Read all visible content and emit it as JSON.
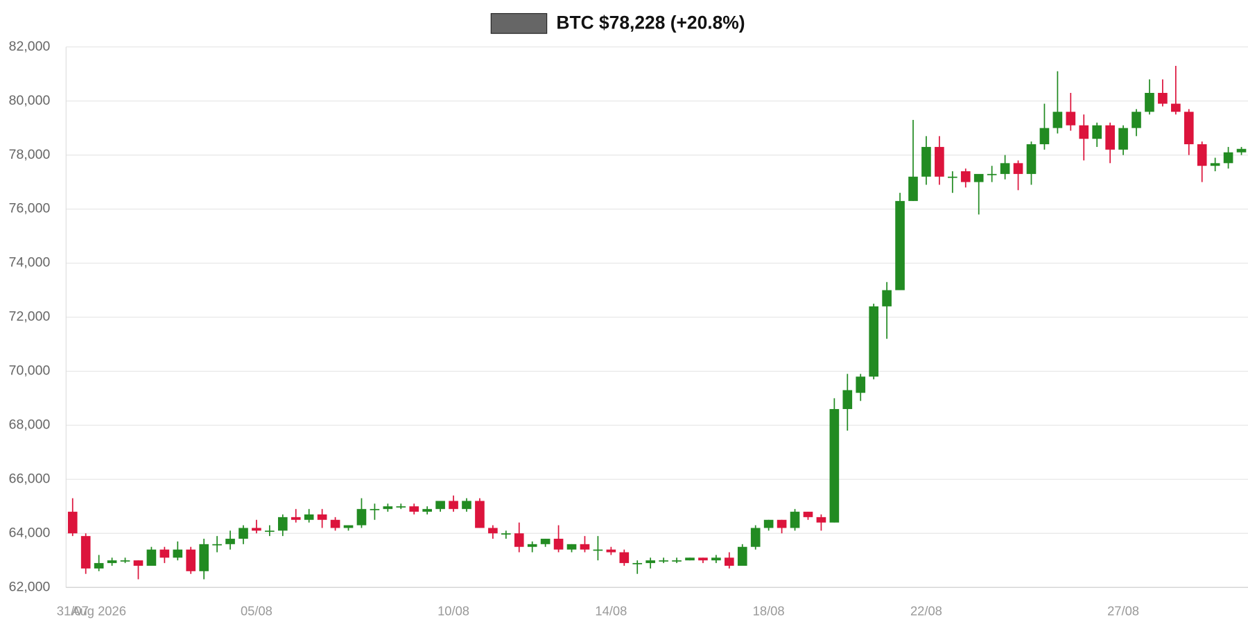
{
  "chart_data": {
    "type": "candlestick",
    "series": [
      {
        "name": "BTC $78,228 (+20.8%)",
        "color": "#666666",
        "up_color": "#228b22",
        "down_color": "#dc143c",
        "open": [
          64800,
          63900,
          62700,
          62900,
          63000,
          63000,
          62800,
          63400,
          63100,
          63400,
          62600,
          63600,
          63600,
          63800,
          64200,
          64100,
          64100,
          64600,
          64500,
          64700,
          64500,
          64200,
          64300,
          64900,
          64900,
          65000,
          65000,
          64800,
          64900,
          65200,
          64900,
          65200,
          64200,
          64000,
          64000,
          63500,
          63600,
          63800,
          63400,
          63600,
          63400,
          63400,
          63300,
          62900,
          62900,
          63000,
          63000,
          63000,
          63100,
          63000,
          63100,
          62800,
          63500,
          64200,
          64500,
          64200,
          64800,
          64600,
          64400,
          68600,
          69200,
          69800,
          72400,
          73000,
          76300,
          77200,
          78300,
          77200,
          77400,
          77000,
          77300,
          77300,
          77700,
          77300,
          78400,
          79000,
          79600,
          79100,
          78600,
          79100,
          78200,
          79000,
          79600,
          80300,
          79900,
          79600,
          78400,
          77600,
          77700,
          78100
        ],
        "high": [
          65300,
          64000,
          63200,
          63100,
          63100,
          63000,
          63500,
          63500,
          63700,
          63500,
          63800,
          63900,
          64100,
          64300,
          64500,
          64300,
          64700,
          64900,
          64900,
          64900,
          64600,
          64300,
          65300,
          65100,
          65100,
          65100,
          65100,
          65000,
          65200,
          65400,
          65300,
          65300,
          64300,
          64100,
          64400,
          63700,
          63800,
          64300,
          63600,
          63900,
          63900,
          63500,
          63400,
          63000,
          63100,
          63100,
          63100,
          63100,
          63100,
          63200,
          63300,
          63600,
          64300,
          64500,
          64500,
          64900,
          64800,
          64700,
          69000,
          69900,
          69900,
          72500,
          73300,
          76600,
          79300,
          78700,
          78700,
          77400,
          77500,
          77100,
          77600,
          78000,
          77800,
          78500,
          79900,
          81100,
          80300,
          79500,
          79200,
          79200,
          79100,
          79700,
          80800,
          80800,
          81300,
          79700,
          78500,
          77900,
          78300,
          78300
        ],
        "low": [
          63900,
          62500,
          62600,
          62800,
          62900,
          62300,
          62800,
          62900,
          63000,
          62500,
          62300,
          63300,
          63400,
          63600,
          64000,
          63900,
          63900,
          64400,
          64400,
          64200,
          64100,
          64100,
          64200,
          64500,
          64800,
          64900,
          64700,
          64700,
          64800,
          64800,
          64800,
          64200,
          63800,
          63800,
          63300,
          63300,
          63500,
          63300,
          63300,
          63300,
          63000,
          63200,
          62800,
          62500,
          62700,
          62900,
          62900,
          63000,
          62900,
          62900,
          62700,
          62800,
          63400,
          64100,
          64000,
          64100,
          64500,
          64100,
          64400,
          67800,
          68900,
          69700,
          71200,
          73000,
          76300,
          76900,
          76900,
          76600,
          76800,
          75800,
          77000,
          77100,
          76700,
          76900,
          78200,
          78800,
          78900,
          77800,
          78300,
          77700,
          78000,
          78700,
          79500,
          79800,
          79500,
          78000,
          77000,
          77400,
          77500,
          78000
        ],
        "close": [
          64000,
          62700,
          62900,
          63000,
          63000,
          62800,
          63400,
          63100,
          63400,
          62600,
          63600,
          63600,
          63800,
          64200,
          64100,
          64100,
          64600,
          64500,
          64700,
          64500,
          64200,
          64300,
          64900,
          64900,
          65000,
          65000,
          64800,
          64900,
          65200,
          64900,
          65200,
          64200,
          64000,
          64000,
          63500,
          63600,
          63800,
          63400,
          63600,
          63400,
          63400,
          63300,
          62900,
          62900,
          63000,
          63000,
          63000,
          63100,
          63000,
          63100,
          62800,
          63500,
          64200,
          64500,
          64200,
          64800,
          64600,
          64400,
          68600,
          69300,
          69800,
          72400,
          73000,
          76300,
          77200,
          78300,
          77200,
          77200,
          77000,
          77300,
          77300,
          77700,
          77300,
          78400,
          79000,
          79600,
          79100,
          78600,
          79100,
          78200,
          79000,
          79600,
          80300,
          79900,
          79600,
          78400,
          77600,
          77700,
          78100,
          78228
        ]
      }
    ],
    "categories": [
      "31/07",
      null,
      "Aug 2026",
      null,
      null,
      null,
      null,
      null,
      null,
      null,
      null,
      null,
      null,
      null,
      "05/08",
      null,
      null,
      null,
      null,
      null,
      null,
      null,
      null,
      null,
      null,
      null,
      null,
      null,
      null,
      "10/08",
      null,
      null,
      null,
      null,
      null,
      null,
      null,
      null,
      null,
      null,
      null,
      "14/08",
      null,
      null,
      null,
      null,
      null,
      null,
      null,
      null,
      null,
      null,
      null,
      "18/08",
      null,
      null,
      null,
      null,
      null,
      null,
      null,
      null,
      null,
      null,
      null,
      "22/08",
      null,
      null,
      null,
      null,
      null,
      null,
      null,
      null,
      null,
      null,
      null,
      null,
      null,
      null,
      "27/08",
      null,
      null,
      null,
      null,
      null,
      null,
      null,
      null,
      null
    ],
    "ylim": [
      62000,
      82000
    ],
    "yticks": [
      {
        "value": 62000,
        "label": "62,000"
      },
      {
        "value": 64000,
        "label": "64,000"
      },
      {
        "value": 66000,
        "label": "66,000"
      },
      {
        "value": 68000,
        "label": "68,000"
      },
      {
        "value": 70000,
        "label": "70,000"
      },
      {
        "value": 72000,
        "label": "72,000"
      },
      {
        "value": 74000,
        "label": "74,000"
      },
      {
        "value": 76000,
        "label": "76,000"
      },
      {
        "value": 78000,
        "label": "78,000"
      },
      {
        "value": 80000,
        "label": "80,000"
      },
      {
        "value": 82000,
        "label": "82,000"
      }
    ],
    "grid": true
  }
}
